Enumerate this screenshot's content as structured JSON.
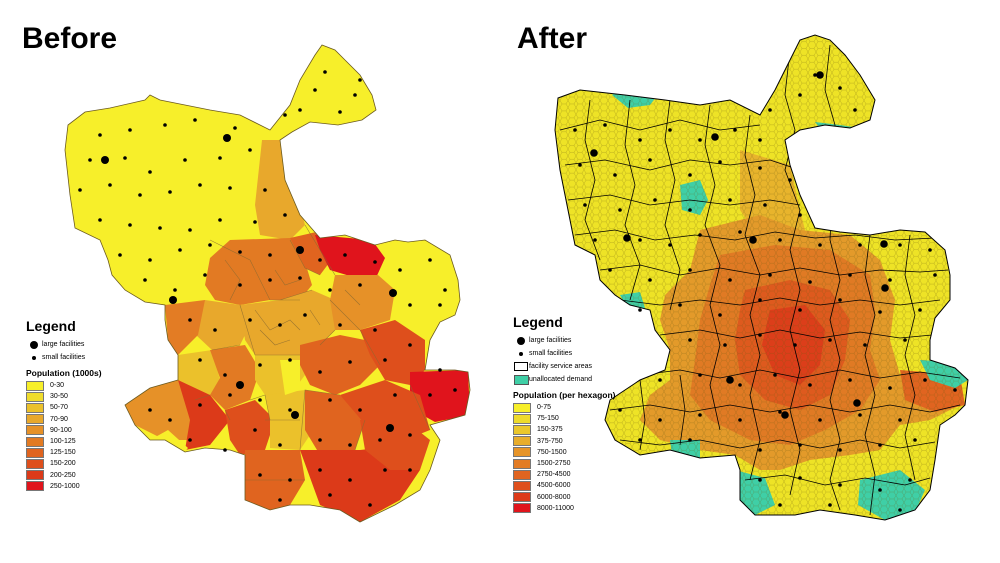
{
  "before": {
    "title": "Before",
    "legend": {
      "title": "Legend",
      "large_label": "large facilities",
      "small_label": "small facilities",
      "pop_title": "Population (1000s)",
      "classes": [
        {
          "label": "0-30",
          "color": "#f7ef2a"
        },
        {
          "label": "30-50",
          "color": "#efdc2c"
        },
        {
          "label": "50-70",
          "color": "#ebc12b"
        },
        {
          "label": "70-90",
          "color": "#e8a82c"
        },
        {
          "label": "90-100",
          "color": "#e69128"
        },
        {
          "label": "100-125",
          "color": "#e27a23"
        },
        {
          "label": "125-150",
          "color": "#e0641f"
        },
        {
          "label": "150-200",
          "color": "#de4f1c"
        },
        {
          "label": "200-250",
          "color": "#dc3a19"
        },
        {
          "label": "250-1000",
          "color": "#e0141c"
        }
      ]
    }
  },
  "after": {
    "title": "After",
    "legend": {
      "title": "Legend",
      "large_label": "large facilities",
      "small_label": "small facilities",
      "area_label": "facility service areas",
      "unallocated_label": "unallocated demand",
      "unallocated_color": "#3fcfa6",
      "pop_title": "Population (per hexagon)",
      "classes": [
        {
          "label": "0-75",
          "color": "#f7ef2a"
        },
        {
          "label": "75-150",
          "color": "#eedb2b"
        },
        {
          "label": "150-375",
          "color": "#ebc72b"
        },
        {
          "label": "375-750",
          "color": "#e8ad2c"
        },
        {
          "label": "750-1500",
          "color": "#e69428"
        },
        {
          "label": "1500-2750",
          "color": "#e37c24"
        },
        {
          "label": "2750-4500",
          "color": "#e06420"
        },
        {
          "label": "4500-6000",
          "color": "#de4f1c"
        },
        {
          "label": "6000-8000",
          "color": "#dc3a19"
        },
        {
          "label": "8000-11000",
          "color": "#e0141c"
        }
      ]
    }
  },
  "colors": {
    "boundary": "#000000",
    "district_line": "#888888"
  }
}
